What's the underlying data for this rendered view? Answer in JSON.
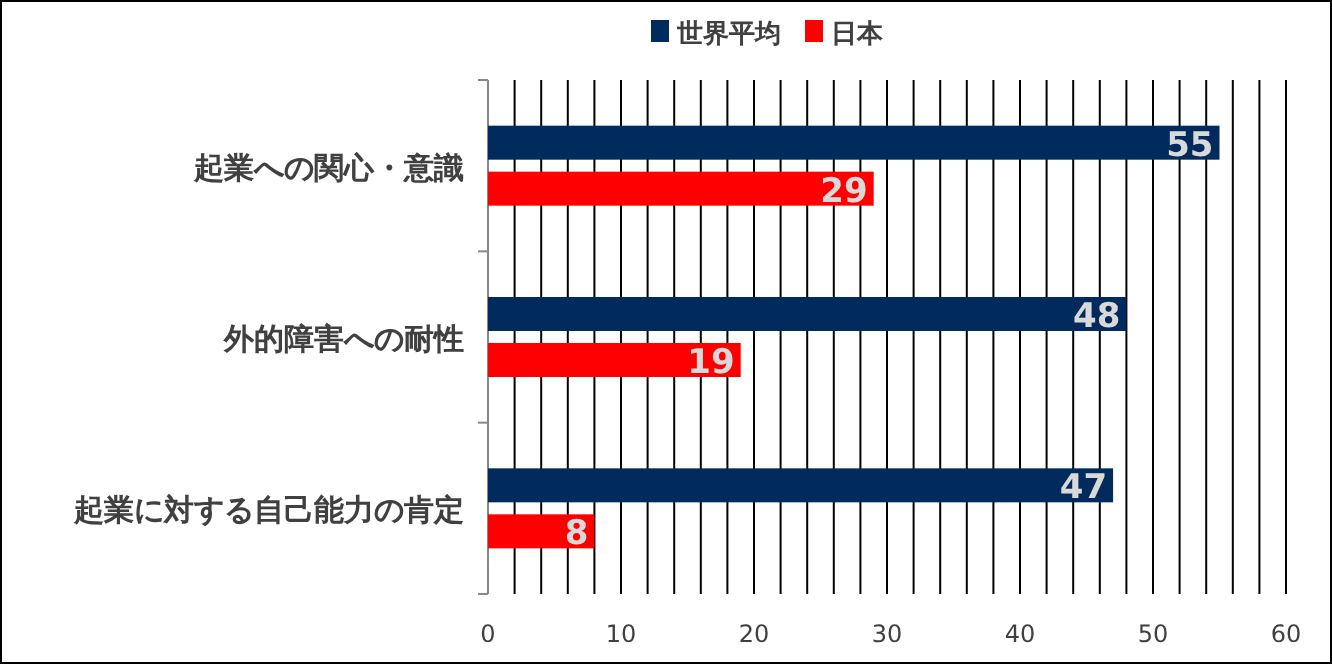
{
  "chart_data": {
    "type": "bar",
    "orientation": "horizontal",
    "categories": [
      "起業への関心・意識",
      "外的障害への耐性",
      "起業に対する自己能力の肯定"
    ],
    "series": [
      {
        "name": "世界平均",
        "color": "#002b5c",
        "values": [
          55,
          48,
          47
        ]
      },
      {
        "name": "日本",
        "color": "#ff0000",
        "values": [
          29,
          19,
          8
        ]
      }
    ],
    "xlim": [
      0,
      60
    ],
    "xticks": [
      0,
      {
        "value": 2,
        "label": null
      },
      {
        "value": 4,
        "label": null
      },
      {
        "value": 6,
        "label": null
      },
      {
        "value": 8,
        "label": null
      },
      10,
      {
        "value": 12,
        "label": null
      },
      {
        "value": 14,
        "label": null
      },
      {
        "value": 16,
        "label": null
      },
      {
        "value": 18,
        "label": null
      },
      20,
      {
        "value": 22,
        "label": null
      },
      {
        "value": 24,
        "label": null
      },
      {
        "value": 26,
        "label": null
      },
      {
        "value": 28,
        "label": null
      },
      30,
      {
        "value": 32,
        "label": null
      },
      {
        "value": 34,
        "label": null
      },
      {
        "value": 36,
        "label": null
      },
      {
        "value": 38,
        "label": null
      },
      40,
      {
        "value": 42,
        "label": null
      },
      {
        "value": 44,
        "label": null
      },
      {
        "value": 46,
        "label": null
      },
      {
        "value": 48,
        "label": null
      },
      50,
      {
        "value": 52,
        "label": null
      },
      {
        "value": 54,
        "label": null
      },
      {
        "value": 56,
        "label": null
      },
      {
        "value": 58,
        "label": null
      },
      60
    ],
    "grid": "x",
    "legend": "top",
    "data_labels": true
  }
}
